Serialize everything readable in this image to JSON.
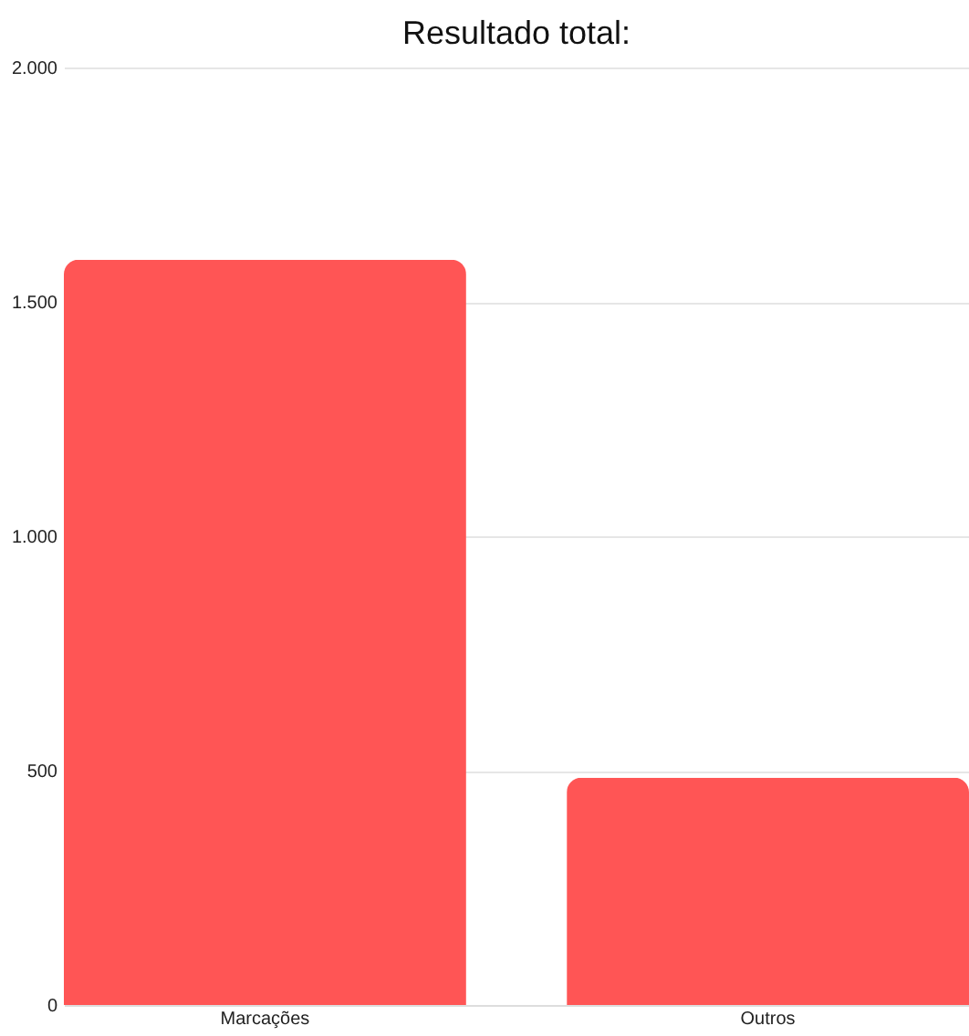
{
  "chart_data": {
    "type": "bar",
    "title": "Resultado total:",
    "categories": [
      "Marcações",
      "Outros"
    ],
    "values": [
      1590,
      485
    ],
    "color": "#ff5555",
    "ylim": [
      0,
      2000
    ],
    "yticks": [
      0,
      {
        "value": 500,
        "label": "500"
      },
      {
        "value": 1000,
        "label": "1.000"
      },
      {
        "value": 1500,
        "label": "1.500"
      },
      {
        "value": 2000,
        "label": "2.000"
      }
    ],
    "grid": "y"
  }
}
